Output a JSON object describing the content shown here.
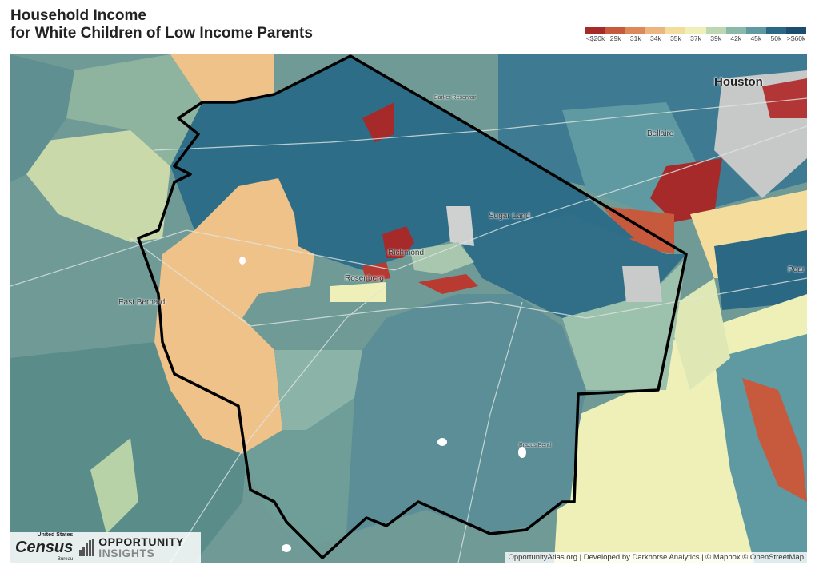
{
  "header": {
    "title_line1": "Household Income",
    "title_line2": "for White Children of Low Income Parents"
  },
  "legend": {
    "colors": [
      "#a62a2a",
      "#c75a3c",
      "#dd8a5a",
      "#ecb77e",
      "#f4dc9d",
      "#eef0b8",
      "#bcd7b1",
      "#8ab9aa",
      "#5f9aa3",
      "#2b6884",
      "#1a4d6e"
    ],
    "ticks": [
      "<$20k",
      "29k",
      "31k",
      "34k",
      "35k",
      "37k",
      "39k",
      "42k",
      "45k",
      "50k",
      ">$60k"
    ]
  },
  "map": {
    "places": {
      "houston": "Houston",
      "bellaire": "Bellaire",
      "sugar_land": "Sugar Land",
      "richmond": "Richmond",
      "rosenberg": "Rosenberg",
      "east_bernard": "East Bernard",
      "pearland": "Pear",
      "barker_reservoir": "Barker Reservoir",
      "brazos_bend": "Brazos Bend"
    }
  },
  "logos": {
    "census_top": "United States",
    "census_main": "Census",
    "census_bottom": "Bureau",
    "oi_line1": "OPPORTUNITY",
    "oi_line2": "INSIGHTS"
  },
  "attribution": "OpportunityAtlas.org | Developed by Darkhorse Analytics | © Mapbox © OpenStreetMap"
}
